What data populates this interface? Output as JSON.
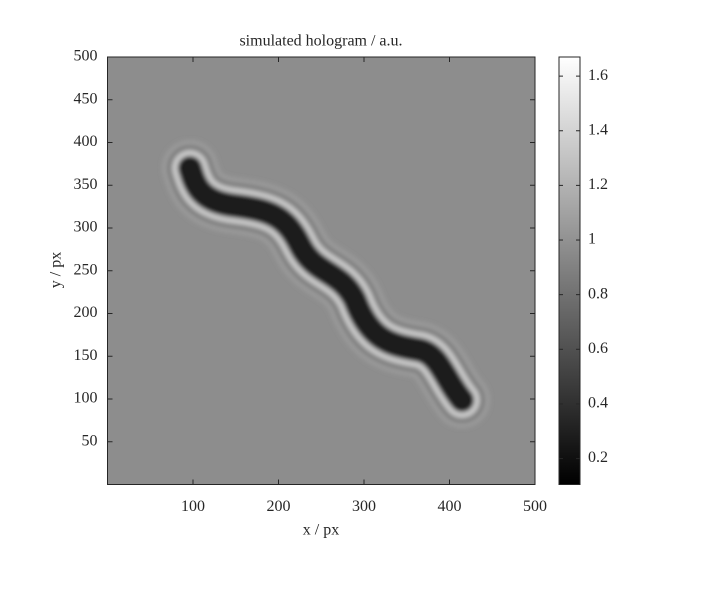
{
  "chart_data": {
    "type": "image",
    "title": "simulated hologram / a.u.",
    "x_label": "x / px",
    "y_label": "y / px",
    "xlim": [
      0,
      500
    ],
    "xticks": [
      100,
      200,
      300,
      400,
      500
    ],
    "ylim": [
      0,
      500
    ],
    "yticks": [
      50,
      100,
      150,
      200,
      250,
      300,
      350,
      400,
      450,
      500
    ],
    "colormap": "gray",
    "clim": [
      0.105,
      1.67
    ],
    "cticks": [
      0.2,
      0.4,
      0.6,
      0.8,
      1,
      1.2,
      1.4,
      1.6
    ]
  }
}
